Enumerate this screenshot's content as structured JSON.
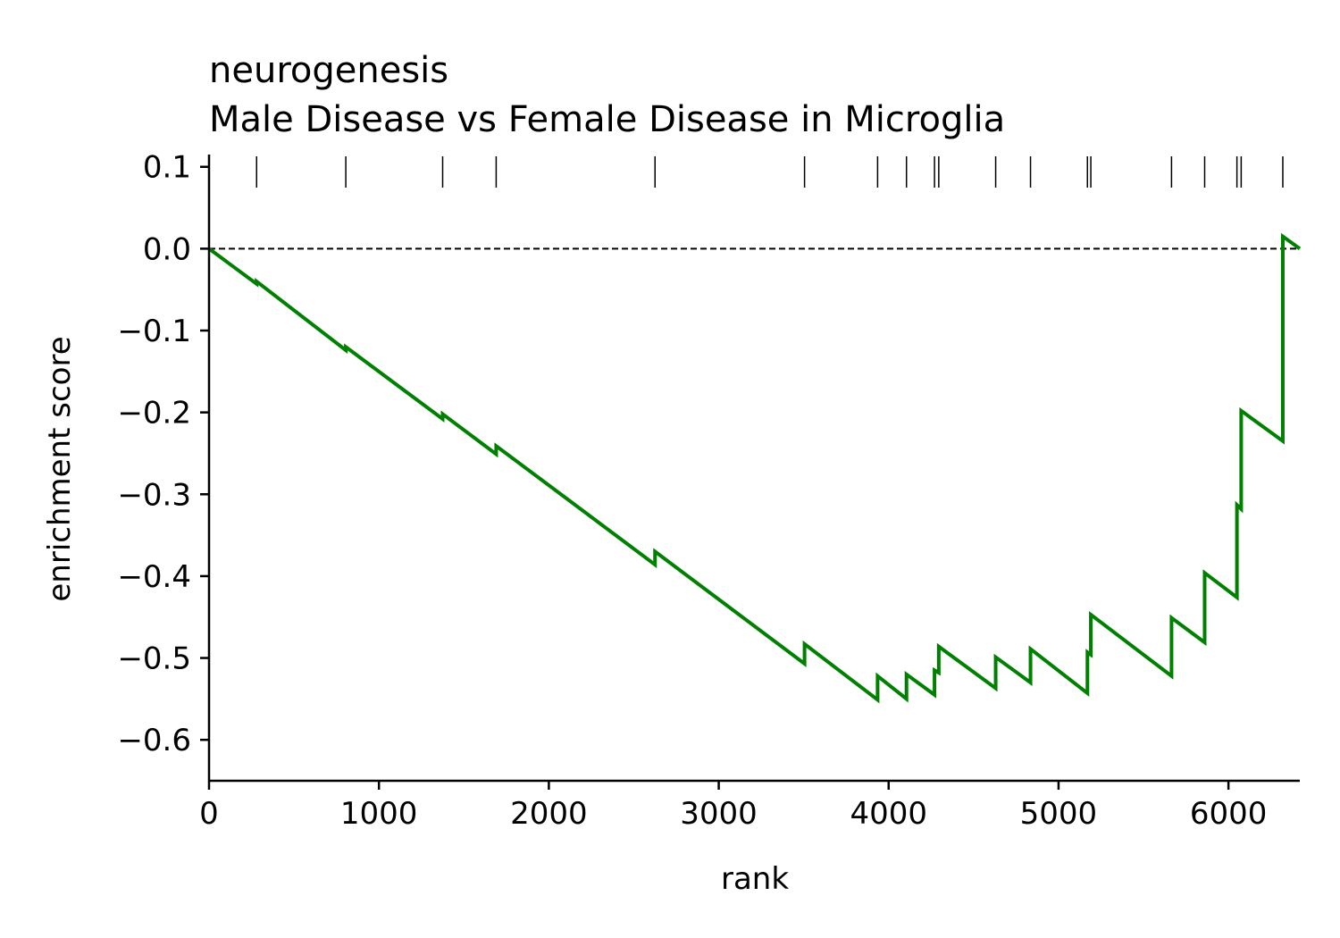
{
  "chart_data": {
    "type": "line",
    "title": "neurogenesis",
    "subtitle": "Male Disease vs Female Disease in Microglia",
    "xlabel": "rank",
    "ylabel": "enrichment score",
    "xlim": [
      0,
      6420
    ],
    "ylim": [
      -0.65,
      0.115
    ],
    "xticks": [
      0,
      1000,
      2000,
      3000,
      4000,
      5000,
      6000
    ],
    "xtick_labels": [
      "0",
      "1000",
      "2000",
      "3000",
      "4000",
      "5000",
      "6000"
    ],
    "yticks": [
      0.1,
      0.0,
      -0.1,
      -0.2,
      -0.3,
      -0.4,
      -0.5,
      -0.6
    ],
    "ytick_labels": [
      "0.1",
      "0.0",
      "−0.1",
      "−0.2",
      "−0.3",
      "−0.4",
      "−0.5",
      "−0.6"
    ],
    "reference_line": 0.0,
    "grid": false,
    "line_color": "#008000",
    "hit_ranks": [
      280,
      805,
      1375,
      1690,
      2625,
      3505,
      3935,
      4105,
      4270,
      4295,
      4630,
      4835,
      5170,
      5190,
      5665,
      5860,
      6050,
      6075,
      6320
    ],
    "series": [
      {
        "x": [
          0,
          280,
          280,
          805,
          805,
          1375,
          1375,
          1690,
          1690,
          2625,
          2625,
          3505,
          3505,
          3935,
          3935,
          4105,
          4105,
          4270,
          4270,
          4295,
          4295,
          4630,
          4630,
          4835,
          4835,
          5170,
          5170,
          5190,
          5190,
          5665,
          5665,
          5860,
          5860,
          6050,
          6050,
          6075,
          6075,
          6320,
          6320,
          6420
        ],
        "y": [
          0.0,
          -0.043,
          -0.04,
          -0.124,
          -0.12,
          -0.208,
          -0.202,
          -0.251,
          -0.241,
          -0.386,
          -0.37,
          -0.507,
          -0.483,
          -0.551,
          -0.522,
          -0.55,
          -0.52,
          -0.545,
          -0.515,
          -0.518,
          -0.486,
          -0.537,
          -0.499,
          -0.53,
          -0.489,
          -0.543,
          -0.493,
          -0.496,
          -0.447,
          -0.522,
          -0.451,
          -0.481,
          -0.396,
          -0.426,
          -0.313,
          -0.318,
          -0.198,
          -0.235,
          0.015,
          0.0
        ]
      }
    ]
  }
}
